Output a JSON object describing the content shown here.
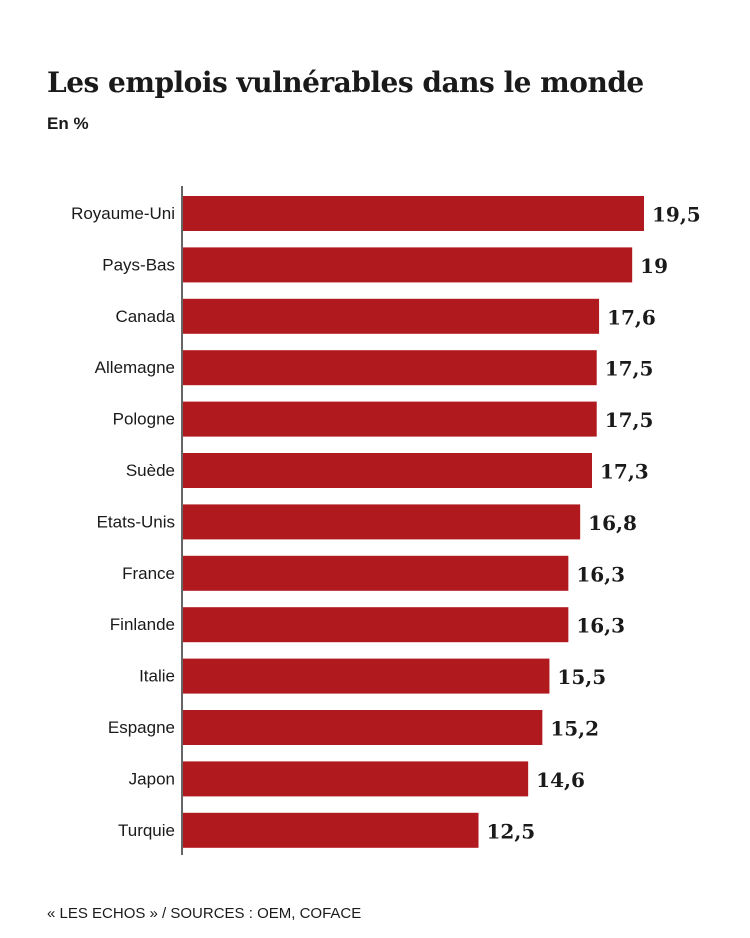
{
  "header": {
    "title": "Les emplois vulnérables dans le monde",
    "subtitle": "En %"
  },
  "footer": {
    "source": "« LES ECHOS » / SOURCES : OEM, COFACE"
  },
  "colors": {
    "bar": "#B0191E",
    "axis": "#333333",
    "text": "#1a1a1a"
  },
  "chart_data": {
    "type": "bar",
    "orientation": "horizontal",
    "categories": [
      "Royaume-Uni",
      "Pays-Bas",
      "Canada",
      "Allemagne",
      "Pologne",
      "Suède",
      "Etats-Unis",
      "France",
      "Finlande",
      "Italie",
      "Espagne",
      "Japon",
      "Turquie"
    ],
    "values": [
      19.5,
      19,
      17.6,
      17.5,
      17.5,
      17.3,
      16.8,
      16.3,
      16.3,
      15.5,
      15.2,
      14.6,
      12.5
    ],
    "value_labels": [
      "19,5",
      "19",
      "17,6",
      "17,5",
      "17,5",
      "17,3",
      "16,8",
      "16,3",
      "16,3",
      "15,5",
      "15,2",
      "14,6",
      "12,5"
    ],
    "title": "Les emplois vulnérables dans le monde",
    "subtitle": "En %",
    "xlim": [
      0,
      19.5
    ],
    "grid": false,
    "legend": "none"
  }
}
